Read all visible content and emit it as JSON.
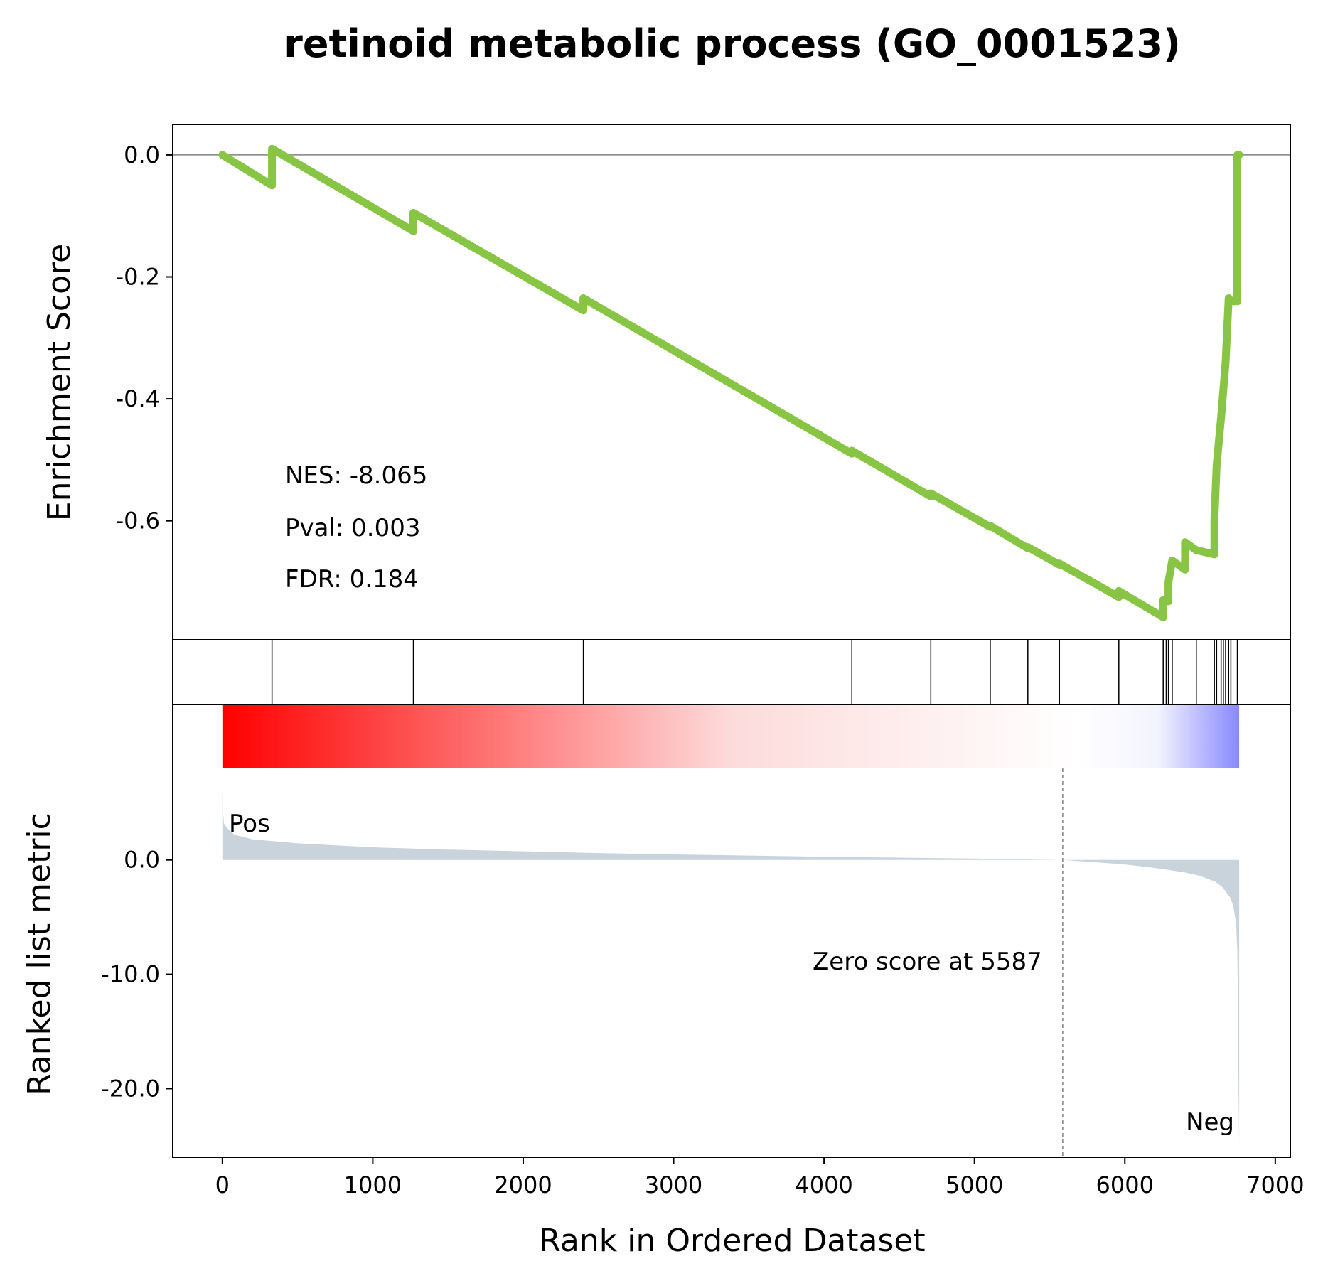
{
  "chart_data": {
    "type": "line",
    "title": "retinoid metabolic process (GO_0001523)",
    "xlabel": "Rank in Ordered Dataset",
    "xlim": [
      -330,
      7100
    ],
    "x_ticks": [
      0,
      1000,
      2000,
      3000,
      4000,
      5000,
      6000,
      7000
    ],
    "x_tick_labels": [
      "0",
      "1000",
      "2000",
      "3000",
      "4000",
      "5000",
      "6000",
      "7000"
    ],
    "enrichment": {
      "ylabel": "Enrichment Score",
      "ylim": [
        -0.795,
        0.05
      ],
      "y_ticks": [
        0.0,
        -0.2,
        -0.4,
        -0.6
      ],
      "y_tick_labels": [
        "0.0",
        "-0.2",
        "-0.4",
        "-0.6"
      ],
      "color": "#88c544",
      "grid": false,
      "zero_line": true,
      "x": [
        0,
        330,
        330,
        1270,
        1270,
        2400,
        2400,
        4185,
        4185,
        4710,
        4710,
        5105,
        5105,
        5355,
        5355,
        5565,
        5565,
        5960,
        5960,
        6255,
        6255,
        6290,
        6290,
        6315,
        6315,
        6400,
        6400,
        6475,
        6475,
        6595,
        6595,
        6610,
        6610,
        6640,
        6640,
        6670,
        6670,
        6690,
        6690,
        6705,
        6705,
        6748,
        6748,
        6760
      ],
      "y": [
        0.0,
        -0.05,
        0.01,
        -0.125,
        -0.095,
        -0.255,
        -0.235,
        -0.49,
        -0.485,
        -0.56,
        -0.555,
        -0.61,
        -0.608,
        -0.645,
        -0.643,
        -0.672,
        -0.67,
        -0.725,
        -0.715,
        -0.758,
        -0.73,
        -0.732,
        -0.7,
        -0.665,
        -0.665,
        -0.68,
        -0.635,
        -0.648,
        -0.648,
        -0.655,
        -0.6,
        -0.51,
        -0.51,
        -0.43,
        -0.43,
        -0.34,
        -0.34,
        -0.235,
        -0.235,
        -0.24,
        -0.24,
        -0.24,
        0.0,
        0.0
      ],
      "stats": {
        "nes": "NES: -8.065",
        "pval": "Pval: 0.003",
        "fdr": "FDR: 0.184"
      }
    },
    "hits": [
      330,
      1270,
      2400,
      4185,
      4710,
      5105,
      5355,
      5565,
      5960,
      6255,
      6275,
      6290,
      6315,
      6475,
      6595,
      6610,
      6640,
      6655,
      6670,
      6690,
      6705,
      6748
    ],
    "heatmap": {
      "x_range": [
        0,
        6760
      ],
      "colors": [
        "#ff0000",
        "#fddbdb",
        "#ffffff",
        "#f3f3ff",
        "#8888ff"
      ]
    },
    "ranked_metric": {
      "ylabel": "Ranked list metric",
      "ylim": [
        -26.0,
        8.0
      ],
      "y_ticks": [
        0.0,
        -10.0,
        -20.0
      ],
      "y_tick_labels": [
        "0.0",
        "-10.0",
        "-20.0"
      ],
      "color": "#c8d3dc",
      "x": [
        0,
        3,
        10,
        30,
        80,
        200,
        500,
        1000,
        1500,
        2000,
        2500,
        3000,
        3500,
        4000,
        4500,
        5000,
        5400,
        5587,
        5800,
        6000,
        6200,
        6400,
        6500,
        6600,
        6650,
        6700,
        6720,
        6740,
        6748,
        6752,
        6756,
        6760
      ],
      "y": [
        6.0,
        4.5,
        3.2,
        2.8,
        2.2,
        1.8,
        1.45,
        1.1,
        0.9,
        0.75,
        0.6,
        0.48,
        0.38,
        0.28,
        0.2,
        0.12,
        0.04,
        0.0,
        -0.2,
        -0.4,
        -0.7,
        -1.1,
        -1.4,
        -1.9,
        -2.4,
        -3.3,
        -4.0,
        -5.5,
        -8.0,
        -13.0,
        -20.0,
        -25.0
      ],
      "zero_cross": 5587,
      "zero_text": "Zero score at 5587",
      "pos_label": "Pos",
      "neg_label": "Neg",
      "pos_color": "#ff0000",
      "neg_color": "#0000ff"
    }
  }
}
